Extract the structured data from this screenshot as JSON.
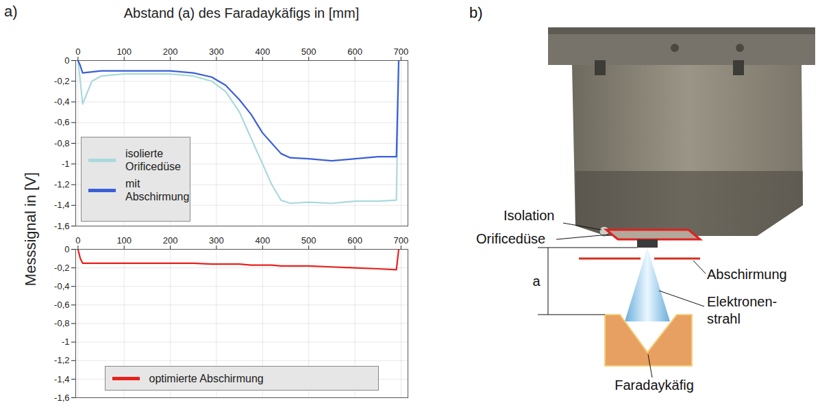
{
  "chart_data": [
    {
      "type": "line",
      "xlabel": "Abstand (a) des Faradaykäfigs in [mm]",
      "ylabel": "Messsignal in [V]",
      "x": [
        0,
        5,
        10,
        30,
        50,
        100,
        150,
        200,
        250,
        290,
        320,
        350,
        375,
        400,
        420,
        440,
        460,
        500,
        550,
        600,
        650,
        690,
        695
      ],
      "series": [
        {
          "name": "isolierte Orificedüse",
          "color": "#a9d9dc",
          "values": [
            0,
            -0.2,
            -0.42,
            -0.2,
            -0.15,
            -0.13,
            -0.13,
            -0.13,
            -0.15,
            -0.2,
            -0.3,
            -0.5,
            -0.75,
            -1.0,
            -1.2,
            -1.35,
            -1.38,
            -1.37,
            -1.38,
            -1.36,
            -1.36,
            -1.35,
            0
          ]
        },
        {
          "name": "mit Abschirmung",
          "color": "#3a5fd8",
          "values": [
            0,
            -0.05,
            -0.12,
            -0.11,
            -0.1,
            -0.1,
            -0.1,
            -0.1,
            -0.12,
            -0.16,
            -0.24,
            -0.38,
            -0.52,
            -0.7,
            -0.8,
            -0.9,
            -0.94,
            -0.95,
            -0.97,
            -0.95,
            -0.93,
            -0.93,
            0
          ]
        }
      ],
      "xlim": [
        -5,
        715
      ],
      "xticks": [
        0,
        100,
        200,
        300,
        400,
        500,
        600,
        700
      ],
      "ylim": [
        -1.6,
        0
      ],
      "yticks": [
        0,
        {
          "value": -0.2,
          "label": "-0,2"
        },
        {
          "value": -0.4,
          "label": "-0,4"
        },
        {
          "value": -0.6,
          "label": "-0,6"
        },
        {
          "value": -0.8,
          "label": "-0,8"
        },
        {
          "value": -1,
          "label": "-1"
        },
        {
          "value": -1.2,
          "label": "-1,2"
        },
        {
          "value": -1.4,
          "label": "-1,4"
        },
        {
          "value": -1.6,
          "label": "-1,6"
        }
      ],
      "grid": true,
      "legend": "lower left"
    },
    {
      "type": "line",
      "x": [
        0,
        5,
        10,
        30,
        50,
        100,
        150,
        200,
        250,
        290,
        320,
        350,
        375,
        400,
        420,
        440,
        460,
        500,
        550,
        600,
        650,
        690,
        695
      ],
      "series": [
        {
          "name": "optimierte Abschirmung",
          "color": "#e8201c",
          "values": [
            0,
            -0.1,
            -0.15,
            -0.15,
            -0.15,
            -0.15,
            -0.15,
            -0.15,
            -0.15,
            -0.16,
            -0.16,
            -0.16,
            -0.17,
            -0.17,
            -0.17,
            -0.18,
            -0.18,
            -0.18,
            -0.19,
            -0.2,
            -0.21,
            -0.22,
            0
          ]
        }
      ],
      "xlim": [
        -5,
        715
      ],
      "xticks": [
        0,
        100,
        200,
        300,
        400,
        500,
        600,
        700
      ],
      "ylim": [
        -1.6,
        0
      ],
      "yticks": [
        0,
        {
          "value": -0.2,
          "label": "-0,2"
        },
        {
          "value": -0.4,
          "label": "-0,4"
        },
        {
          "value": -0.6,
          "label": "-0,6"
        },
        {
          "value": -0.8,
          "label": "-0,8"
        },
        {
          "value": -1,
          "label": "-1"
        },
        {
          "value": -1.2,
          "label": "-1,2"
        },
        {
          "value": -1.4,
          "label": "-1,4"
        },
        {
          "value": -1.6,
          "label": "-1,6"
        }
      ],
      "grid": true,
      "legend": "bottom"
    }
  ],
  "figure": {
    "panel_labels": [
      "a)",
      "b)"
    ],
    "diagram": {
      "isolation": "Isolation",
      "orifice": "Orificedüse",
      "shield": "Abschirmung",
      "distance": "a",
      "beam": [
        "Elektronen-",
        "strahl"
      ],
      "cup": "Faradaykäfig"
    }
  }
}
